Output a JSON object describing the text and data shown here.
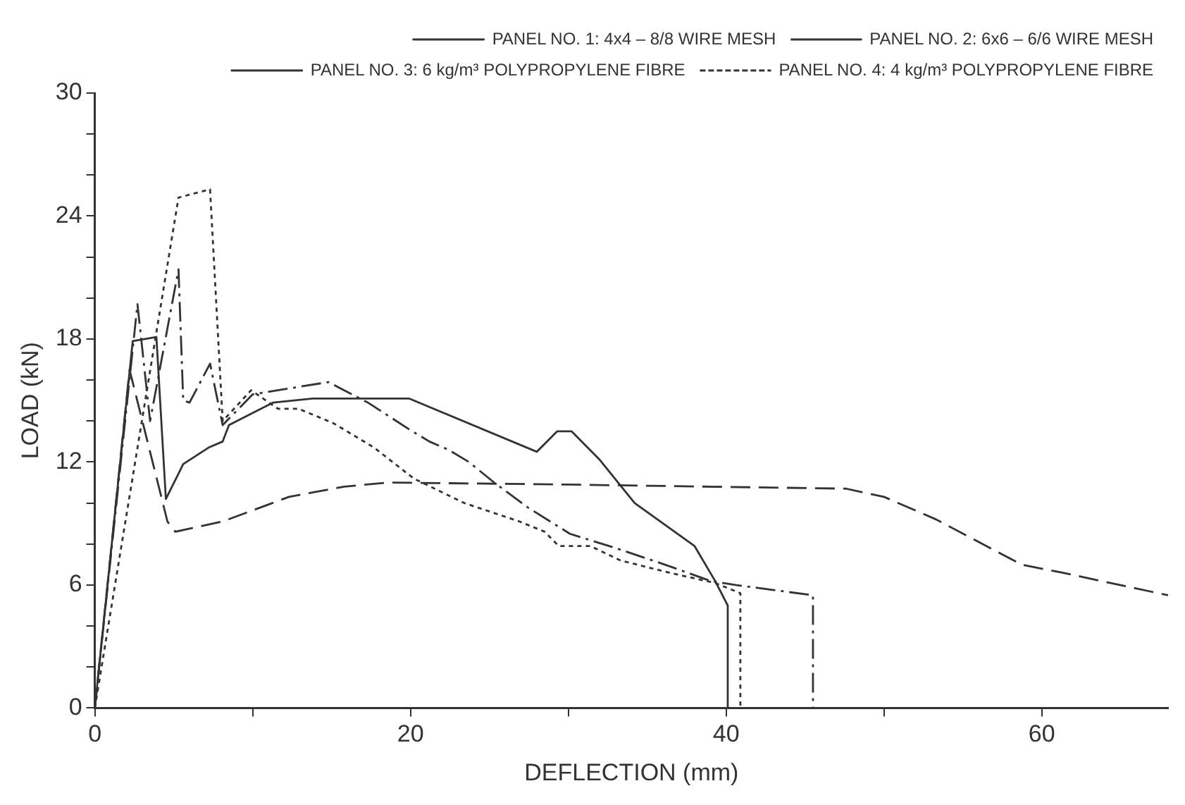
{
  "chart_data": {
    "type": "line",
    "xlabel": "DEFLECTION (mm)",
    "ylabel": "LOAD (kN)",
    "xlim": [
      0,
      68
    ],
    "xticks": [
      0,
      {
        "value": 10,
        "label": null
      },
      20,
      {
        "value": 30,
        "label": null
      },
      40,
      {
        "value": 50,
        "label": null
      },
      60
    ],
    "ylim": [
      0,
      30
    ],
    "yticks": [
      0,
      {
        "value": 2,
        "label": null
      },
      {
        "value": 4,
        "label": null
      },
      6,
      {
        "value": 8,
        "label": null
      },
      {
        "value": 10,
        "label": null
      },
      12,
      {
        "value": 14,
        "label": null
      },
      {
        "value": 16,
        "label": null
      },
      18,
      {
        "value": 20,
        "label": null
      },
      {
        "value": 22,
        "label": null
      },
      24,
      {
        "value": 26,
        "label": null
      },
      {
        "value": 28,
        "label": null
      },
      30
    ],
    "grid": false,
    "legend": "top right",
    "marker": "none",
    "series": [
      {
        "name": "PANEL NO. 1: 4x4 – 8/8 WIRE MESH",
        "color": "#333333",
        "line_style": "solid",
        "x": [
          0,
          2.4,
          3.9,
          4.5,
          5.6,
          7.2,
          8.1,
          8.5,
          11.3,
          13.8,
          19.9,
          28,
          29.3,
          30.2,
          32,
          34.2,
          38,
          39.3,
          40.1,
          40.1
        ],
        "values": [
          0,
          17.9,
          18.1,
          10.2,
          11.9,
          12.7,
          13,
          13.8,
          14.9,
          15.1,
          15.1,
          12.5,
          13.5,
          13.5,
          12.1,
          10,
          7.9,
          6.2,
          5,
          0
        ]
      },
      {
        "name": "PANEL NO. 2: 6x6 – 6/6 WIRE MESH",
        "color": "#333333",
        "line_style": "dashed",
        "x": [
          0,
          2.2,
          4.6,
          5.1,
          8.1,
          12.3,
          15.8,
          18.6,
          30,
          47.6,
          50,
          53.3,
          58.7,
          61.3,
          68
        ],
        "values": [
          0,
          16.5,
          9.1,
          8.6,
          9.1,
          10.3,
          10.8,
          11,
          10.9,
          10.7,
          10.3,
          9.2,
          7,
          6.6,
          5.5
        ]
      },
      {
        "name": "PANEL NO. 3: 6 kg/m³ POLYPROPYLENE FIBRE",
        "color": "#333333",
        "line_style": "dashdot",
        "x": [
          0,
          2.7,
          3.5,
          5.3,
          5.6,
          6,
          7.3,
          8.1,
          10,
          14.8,
          15.8,
          17.3,
          19.9,
          21.2,
          22.4,
          23.7,
          25.3,
          27.4,
          30.1,
          33,
          36.1,
          39,
          40.6,
          45.5,
          45.5
        ],
        "values": [
          0,
          19.7,
          14,
          21.4,
          15,
          14.9,
          16.8,
          13.8,
          15.3,
          15.9,
          15.5,
          14.9,
          13.6,
          13,
          12.6,
          12,
          11,
          9.8,
          8.5,
          7.8,
          7,
          6.2,
          6,
          5.5,
          0
        ]
      },
      {
        "name": "PANEL NO. 4: 4 kg/m³ POLYPROPYLENE FIBRE",
        "color": "#333333",
        "line_style": "dotted",
        "x": [
          0,
          5.3,
          7.3,
          8.1,
          9.9,
          11.6,
          12.9,
          15.1,
          17.7,
          20.2,
          21.8,
          23.4,
          26.9,
          28.5,
          29.4,
          31.4,
          33.3,
          36.4,
          39.3,
          40.9,
          40.9
        ],
        "values": [
          0,
          24.9,
          25.3,
          14,
          15.5,
          14.6,
          14.6,
          13.9,
          12.7,
          11.2,
          10.6,
          10,
          9.1,
          8.6,
          7.9,
          7.9,
          7.2,
          6.6,
          6.1,
          5.6,
          0
        ]
      }
    ]
  }
}
